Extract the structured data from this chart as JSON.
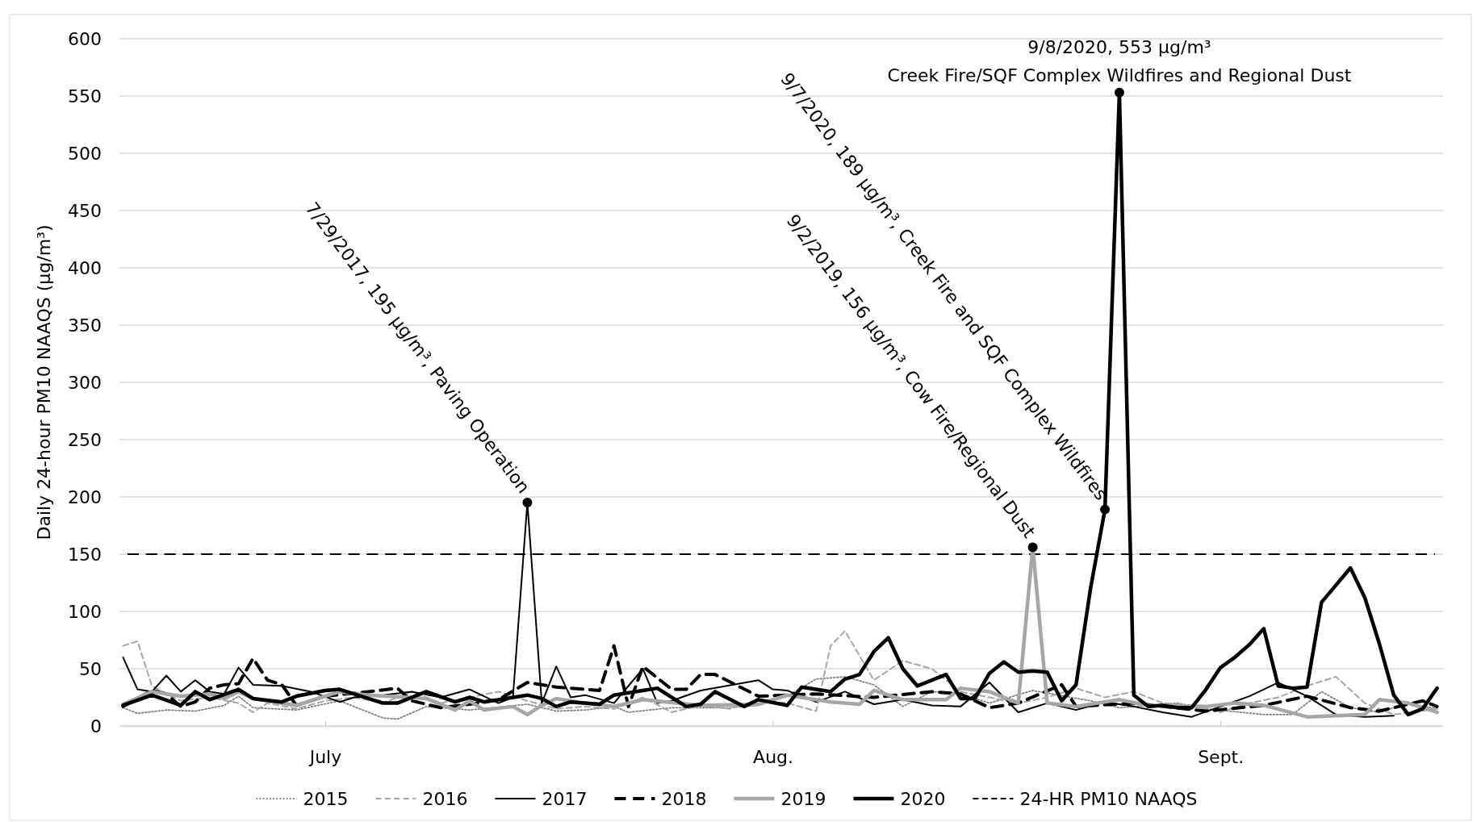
{
  "chart_data": {
    "type": "line",
    "ylabel": "Daily 24-hour PM10 NAAQS (μg/m³)",
    "xlim": [
      "--06-30T18:00",
      "--09-30T10:00"
    ],
    "xticks": [
      {
        "value": "--07-15",
        "label": "July"
      },
      {
        "value": "--08-15",
        "label": "Aug."
      },
      {
        "value": "--09-15",
        "label": "Sept."
      }
    ],
    "ylim": [
      0,
      600
    ],
    "yticks": [
      0,
      50,
      100,
      150,
      200,
      250,
      300,
      350,
      400,
      450,
      500,
      550,
      600
    ],
    "grid": "y",
    "legend": "bottom",
    "series": [
      {
        "name": "2015",
        "color": "#808080",
        "line_style": "dotted",
        "x": [
          "--07-01",
          "--07-02",
          "--07-04",
          "--07-06",
          "--07-08",
          "--07-09",
          "--07-10",
          "--07-13",
          "--07-16",
          "--07-19",
          "--07-20",
          "--07-22",
          "--07-25",
          "--07-29",
          "--07-31",
          "--08-02",
          "--08-04",
          "--08-05",
          "--08-08",
          "--08-12",
          "--08-14",
          "--08-16",
          "--08-18",
          "--08-20",
          "--08-22",
          "--08-24",
          "--08-26",
          "--08-28",
          "--08-30",
          "--09-02",
          "--09-06",
          "--09-08",
          "--09-12",
          "--09-14",
          "--09-18",
          "--09-20",
          "--09-22",
          "--09-24",
          "--09-26",
          "--09-28",
          "--09-30"
        ],
        "values": [
          16,
          11,
          14,
          13,
          18,
          26,
          16,
          14,
          22,
          7,
          6,
          17,
          14,
          19,
          13,
          14,
          17,
          12,
          16,
          16,
          18,
          26,
          41,
          43,
          36,
          17,
          30,
          28,
          20,
          31,
          22,
          16,
          20,
          15,
          10,
          10,
          30,
          16,
          12,
          20,
          15
        ]
      },
      {
        "name": "2016",
        "color": "#a6a6a6",
        "line_style": "dashed",
        "x": [
          "--07-01",
          "--07-02",
          "--07-03",
          "--07-04",
          "--07-05",
          "--07-07",
          "--07-09",
          "--07-10",
          "--07-11",
          "--07-13",
          "--07-15",
          "--07-17",
          "--07-19",
          "--07-21",
          "--07-23",
          "--07-25",
          "--07-27",
          "--07-29",
          "--07-31",
          "--08-02",
          "--08-04",
          "--08-06",
          "--08-08",
          "--08-10",
          "--08-12",
          "--08-14",
          "--08-16",
          "--08-18",
          "--08-19",
          "--08-20",
          "--08-22",
          "--08-24",
          "--08-26",
          "--08-28",
          "--08-30",
          "--09-01",
          "--09-03",
          "--09-05",
          "--09-07",
          "--09-09",
          "--09-11",
          "--09-13",
          "--09-15",
          "--09-17",
          "--09-19",
          "--09-21",
          "--09-23",
          "--09-25",
          "--09-27",
          "--09-30"
        ],
        "values": [
          70,
          74,
          35,
          28,
          22,
          25,
          20,
          12,
          20,
          15,
          22,
          25,
          20,
          30,
          20,
          25,
          30,
          22,
          15,
          17,
          15,
          25,
          12,
          18,
          15,
          22,
          20,
          13,
          70,
          83,
          40,
          57,
          50,
          30,
          25,
          20,
          25,
          33,
          25,
          30,
          20,
          18,
          12,
          20,
          25,
          35,
          43,
          20,
          10,
          15
        ]
      },
      {
        "name": "2017",
        "color": "#000000",
        "line_style": "solid",
        "x": [
          "--07-01",
          "--07-02",
          "--07-03",
          "--07-04",
          "--07-05",
          "--07-06",
          "--07-07",
          "--07-08",
          "--07-09",
          "--07-10",
          "--07-12",
          "--07-14",
          "--07-16",
          "--07-17",
          "--07-19",
          "--07-21",
          "--07-23",
          "--07-25",
          "--07-27",
          "--07-28",
          "--07-29",
          "--07-30",
          "--07-31",
          "--08-01",
          "--08-02",
          "--08-04",
          "--08-06",
          "--08-07",
          "--08-08",
          "--08-10",
          "--08-14",
          "--08-15",
          "--08-16",
          "--08-18",
          "--08-20",
          "--08-22",
          "--08-24",
          "--08-26",
          "--08-28",
          "--08-30",
          "--09-01",
          "--09-03",
          "--09-05",
          "--09-07",
          "--09-09",
          "--09-11",
          "--09-13",
          "--09-15",
          "--09-17",
          "--09-19",
          "--09-21",
          "--09-23",
          "--09-25",
          "--09-27"
        ],
        "values": [
          60,
          32,
          30,
          44,
          30,
          40,
          30,
          28,
          51,
          36,
          35,
          30,
          21,
          25,
          27,
          30,
          25,
          32,
          20,
          25,
          195,
          20,
          52,
          25,
          27,
          20,
          50,
          20,
          22,
          31,
          40,
          32,
          31,
          21,
          30,
          19,
          23,
          18,
          17,
          38,
          12,
          20,
          14,
          21,
          17,
          12,
          8,
          17,
          26,
          38,
          26,
          10,
          8,
          9
        ]
      },
      {
        "name": "2018",
        "color": "#000000",
        "line_style": "dashed",
        "x": [
          "--07-01",
          "--07-03",
          "--07-04",
          "--07-05",
          "--07-06",
          "--07-07",
          "--07-08",
          "--07-09",
          "--07-10",
          "--07-11",
          "--07-12",
          "--07-13",
          "--07-15",
          "--07-18",
          "--07-20",
          "--07-21",
          "--07-23",
          "--07-25",
          "--07-27",
          "--07-29",
          "--07-31",
          "--08-03",
          "--08-04",
          "--08-05",
          "--08-06",
          "--08-08",
          "--08-09",
          "--08-10",
          "--08-11",
          "--08-14",
          "--08-18",
          "--08-22",
          "--08-26",
          "--08-28",
          "--08-30",
          "--09-01",
          "--09-04",
          "--09-05",
          "--09-09",
          "--09-14",
          "--09-18",
          "--09-21",
          "--09-24",
          "--09-26",
          "--09-29",
          "--09-30"
        ],
        "values": [
          17,
          31,
          28,
          17,
          21,
          33,
          36,
          37,
          59,
          40,
          36,
          18,
          26,
          30,
          33,
          22,
          16,
          19,
          23,
          38,
          34,
          31,
          70,
          17,
          52,
          32,
          32,
          45,
          45,
          26,
          28,
          25,
          30,
          28,
          16,
          20,
          36,
          17,
          20,
          13,
          18,
          26,
          16,
          13,
          22,
          17
        ]
      },
      {
        "name": "2019",
        "color": "#a6a6a6",
        "line_style": "solid",
        "x": [
          "--07-01",
          "--07-03",
          "--07-05",
          "--07-07",
          "--07-08",
          "--07-09",
          "--07-10",
          "--07-13",
          "--07-16",
          "--07-18",
          "--07-22",
          "--07-24",
          "--07-25",
          "--07-26",
          "--07-28",
          "--07-29",
          "--07-30",
          "--07-31",
          "--08-02",
          "--08-04",
          "--08-06",
          "--08-10",
          "--08-14",
          "--08-16",
          "--08-19",
          "--08-21",
          "--08-22",
          "--08-24",
          "--08-27",
          "--08-28",
          "--08-30",
          "--09-01",
          "--09-02",
          "--09-03",
          "--09-05",
          "--09-08",
          "--09-10",
          "--09-14",
          "--09-16",
          "--09-18",
          "--09-21",
          "--09-25",
          "--09-26",
          "--09-28",
          "--09-30"
        ],
        "values": [
          19,
          30,
          26,
          28,
          24,
          30,
          24,
          18,
          30,
          27,
          24,
          14,
          22,
          14,
          17,
          10,
          18,
          24,
          20,
          17,
          23,
          18,
          19,
          27,
          21,
          19,
          31,
          23,
          23,
          33,
          30,
          20,
          156,
          20,
          17,
          23,
          18,
          17,
          20,
          18,
          8,
          10,
          23,
          20,
          12
        ]
      },
      {
        "name": "2020",
        "color": "#000000",
        "line_style": "solid",
        "x": [
          "--07-01",
          "--07-03",
          "--07-05",
          "--07-06",
          "--07-07",
          "--07-09",
          "--07-10",
          "--07-12",
          "--07-13",
          "--07-15",
          "--07-16",
          "--07-19",
          "--07-20",
          "--07-22",
          "--07-24",
          "--07-25",
          "--07-26",
          "--07-29",
          "--07-30",
          "--07-31",
          "--08-01",
          "--08-03",
          "--08-04",
          "--08-06",
          "--08-07",
          "--08-09",
          "--08-10",
          "--08-11",
          "--08-13",
          "--08-14",
          "--08-16",
          "--08-17",
          "--08-19",
          "--08-20",
          "--08-21",
          "--08-22",
          "--08-23",
          "--08-24",
          "--08-25",
          "--08-27",
          "--08-28",
          "--08-29",
          "--08-30",
          "--08-31",
          "--09-01",
          "--09-02",
          "--09-03",
          "--09-04",
          "--09-05",
          "--09-06",
          "--09-07",
          "--09-08",
          "--09-09",
          "--09-10",
          "--09-11",
          "--09-12",
          "--09-13",
          "--09-14",
          "--09-15",
          "--09-16",
          "--09-17",
          "--09-18",
          "--09-19",
          "--09-20",
          "--09-21",
          "--09-22",
          "--09-23",
          "--09-24",
          "--09-25",
          "--09-26",
          "--09-27",
          "--09-28",
          "--09-29",
          "--09-30"
        ],
        "values": [
          18,
          27,
          18,
          30,
          23,
          32,
          24,
          21,
          26,
          31,
          32,
          20,
          20,
          30,
          21,
          25,
          21,
          27,
          24,
          17,
          21,
          19,
          27,
          31,
          33,
          17,
          19,
          30,
          17,
          23,
          18,
          34,
          30,
          41,
          45,
          65,
          77,
          50,
          35,
          45,
          24,
          24,
          46,
          56,
          47,
          48,
          47,
          22,
          36,
          120,
          189,
          553,
          27,
          17,
          18,
          16,
          16,
          32,
          51,
          60,
          71,
          85,
          35,
          33,
          34,
          108,
          123,
          138,
          112,
          72,
          27,
          10,
          15,
          33
        ]
      }
    ],
    "ref_lines": [
      {
        "axis": "y",
        "value": 150,
        "label": "24-HR PM10 NAAQS",
        "color": "#000000",
        "line_style": "dashed"
      }
    ],
    "annotations": [
      {
        "text": "7/29/2017, 195 μg/m³, Paving Operation",
        "x": "--07-29",
        "y": 195
      },
      {
        "text": "9/2/2019, 156 μg/m³, Cow Fire/Regional Dust",
        "x": "--09-02",
        "y": 156
      },
      {
        "text": "9/7/2020, 189 μg/m³, Creek Fire and SQF Complex Wildfires",
        "x": "--09-07",
        "y": 189
      },
      {
        "text": "9/8/2020, 553 μg/m³\nCreek Fire/SQF Complex Wildfires and Regional Dust",
        "x": "--09-08",
        "y": 553
      }
    ]
  }
}
